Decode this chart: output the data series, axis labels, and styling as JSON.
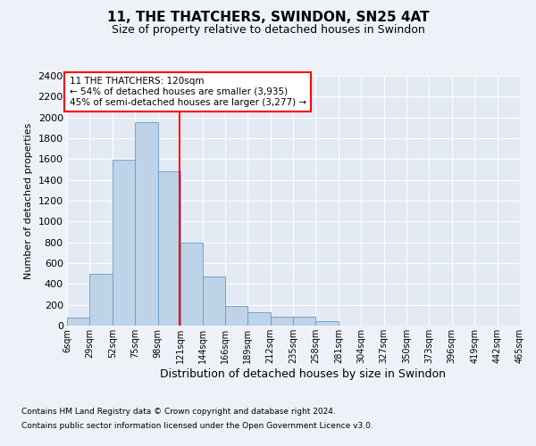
{
  "title1": "11, THE THATCHERS, SWINDON, SN25 4AT",
  "title2": "Size of property relative to detached houses in Swindon",
  "xlabel": "Distribution of detached houses by size in Swindon",
  "ylabel": "Number of detached properties",
  "annotation_line1": "11 THE THATCHERS: 120sqm",
  "annotation_line2": "← 54% of detached houses are smaller (3,935)",
  "annotation_line3": "45% of semi-detached houses are larger (3,277) →",
  "footnote1": "Contains HM Land Registry data © Crown copyright and database right 2024.",
  "footnote2": "Contains public sector information licensed under the Open Government Licence v3.0.",
  "bar_color": "#bed3e8",
  "bar_edge_color": "#6699cc",
  "red_line_x": 120,
  "bin_edges": [
    6,
    29,
    52,
    75,
    98,
    121,
    144,
    166,
    189,
    212,
    235,
    258,
    281,
    304,
    327,
    350,
    373,
    396,
    419,
    442,
    465
  ],
  "bar_heights": [
    75,
    500,
    1590,
    1950,
    1480,
    800,
    475,
    190,
    130,
    85,
    85,
    40,
    0,
    0,
    0,
    0,
    0,
    0,
    0,
    0
  ],
  "ylim": [
    0,
    2400
  ],
  "yticks": [
    0,
    200,
    400,
    600,
    800,
    1000,
    1200,
    1400,
    1600,
    1800,
    2000,
    2200,
    2400
  ],
  "background_color": "#eef2f8",
  "plot_bg_color": "#e4eaf4",
  "grid_color": "#ffffff",
  "title1_fontsize": 11,
  "title2_fontsize": 9,
  "ylabel_fontsize": 8,
  "xlabel_fontsize": 9,
  "ytick_fontsize": 8,
  "xtick_fontsize": 7,
  "footnote_fontsize": 6.5,
  "annot_fontsize": 7.5
}
